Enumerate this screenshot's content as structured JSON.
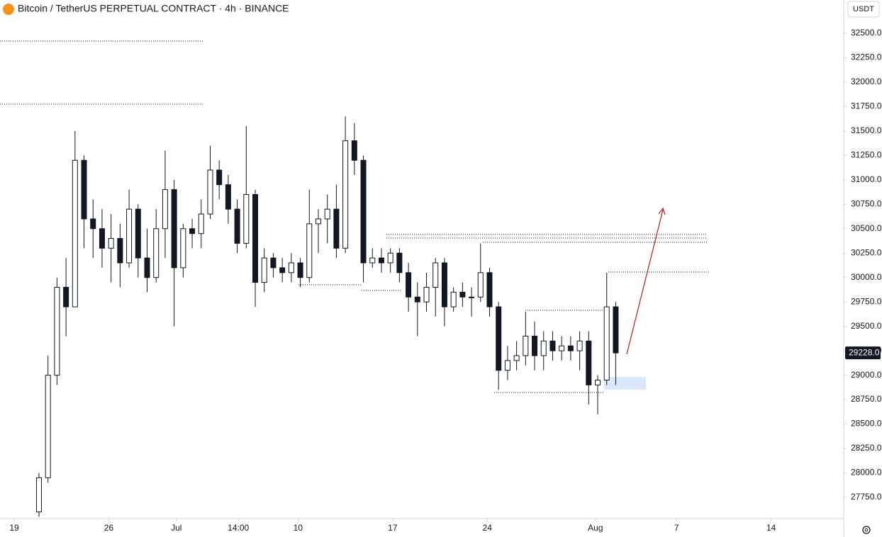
{
  "chart_data": {
    "type": "candlestick",
    "title": "Bitcoin / TetherUS PERPETUAL CONTRACT · 4h · BINANCE",
    "currency_button": "USDT",
    "ylim": [
      27532,
      32841
    ],
    "yticks": [
      {
        "value": 27750,
        "label": "27750.0"
      },
      {
        "value": 28000,
        "label": "28000.0"
      },
      {
        "value": 28250,
        "label": "28250.0"
      },
      {
        "value": 28500,
        "label": "28500.0"
      },
      {
        "value": 28750,
        "label": "28750.0"
      },
      {
        "value": 29000,
        "label": "29000.0"
      },
      {
        "value": 29250,
        "label": "29250.0"
      },
      {
        "value": 29500,
        "label": "29500.0"
      },
      {
        "value": 29750,
        "label": "29750.0"
      },
      {
        "value": 30000,
        "label": "30000.0"
      },
      {
        "value": 30250,
        "label": "30250.0"
      },
      {
        "value": 30500,
        "label": "30500.0"
      },
      {
        "value": 30750,
        "label": "30750.0"
      },
      {
        "value": 31000,
        "label": "31000.0"
      },
      {
        "value": 31250,
        "label": "31250.0"
      },
      {
        "value": 31500,
        "label": "31500.0"
      },
      {
        "value": 31750,
        "label": "31750.0"
      },
      {
        "value": 32000,
        "label": "32000.0"
      },
      {
        "value": 32250,
        "label": "32250.0"
      },
      {
        "value": 32500,
        "label": "32500.0"
      }
    ],
    "xlim": [
      -6.3,
      368.2
    ],
    "xticks": [
      {
        "value": 0,
        "label": "19"
      },
      {
        "value": 42,
        "label": "26"
      },
      {
        "value": 72,
        "label": "Jul"
      },
      {
        "value": 99.5,
        "label": "14:00"
      },
      {
        "value": 126,
        "label": "10"
      },
      {
        "value": 168,
        "label": "17"
      },
      {
        "value": 210,
        "label": "24"
      },
      {
        "value": 258,
        "label": "Aug"
      },
      {
        "value": 294,
        "label": "7"
      },
      {
        "value": 336,
        "label": "14"
      }
    ],
    "last_price": {
      "value": 29228,
      "label": "29228.0"
    },
    "up_color": "#ffffff",
    "down_color": "#131722",
    "border_color": "#131722",
    "series": {
      "x": [
        11,
        15,
        19,
        23,
        27,
        31,
        35,
        39,
        43,
        47,
        51,
        55,
        59,
        63,
        67,
        71,
        75,
        79,
        83,
        87,
        91,
        95,
        99,
        103,
        107,
        111,
        115,
        119,
        123,
        127,
        131,
        135,
        139,
        143,
        147,
        151,
        155,
        159,
        163,
        167,
        171,
        175,
        179,
        183,
        187,
        191,
        195,
        199,
        203,
        207,
        211,
        215,
        219,
        223,
        227,
        231,
        235,
        239,
        243,
        247,
        251,
        255,
        259,
        263,
        267
      ],
      "open": [
        27600,
        27950,
        29000,
        29900,
        29700,
        31200,
        30600,
        30500,
        30300,
        30400,
        30150,
        30700,
        30200,
        30000,
        30500,
        30900,
        30100,
        30500,
        30450,
        30650,
        31100,
        30950,
        30700,
        30350,
        30850,
        29950,
        30200,
        30100,
        30050,
        30150,
        30000,
        30550,
        30600,
        30700,
        30300,
        31400,
        31200,
        30150,
        30200,
        30150,
        30250,
        30050,
        29800,
        29750,
        29900,
        30150,
        29700,
        29850,
        29800,
        29800,
        30050,
        29700,
        29050,
        29150,
        29200,
        29400,
        29200,
        29350,
        29250,
        29300,
        29250,
        29350,
        28900,
        28950,
        29700
      ],
      "high": [
        28000,
        29200,
        30000,
        30200,
        31500,
        31250,
        30800,
        30700,
        30650,
        30550,
        30900,
        30750,
        30500,
        30700,
        31300,
        31000,
        30550,
        30600,
        30800,
        31350,
        31200,
        31050,
        30800,
        31550,
        30900,
        30300,
        30250,
        30200,
        30250,
        30200,
        30900,
        30700,
        30850,
        30950,
        31650,
        31580,
        31250,
        30300,
        30300,
        30300,
        30300,
        30150,
        29950,
        30050,
        30200,
        30200,
        29900,
        29950,
        29900,
        30350,
        30100,
        29750,
        29300,
        29350,
        29650,
        29550,
        29450,
        29450,
        29400,
        29400,
        29450,
        29450,
        29000,
        30050,
        29750
      ],
      "low": [
        27550,
        27900,
        28900,
        29400,
        29700,
        30300,
        30200,
        30100,
        29950,
        29900,
        30100,
        30000,
        29850,
        29950,
        30200,
        29500,
        30000,
        30300,
        30300,
        30600,
        30800,
        30550,
        30250,
        30300,
        29700,
        29850,
        30000,
        29950,
        29950,
        29900,
        29950,
        30250,
        30350,
        30200,
        30250,
        31050,
        29950,
        30100,
        30050,
        30050,
        29950,
        29650,
        29400,
        29650,
        29600,
        29500,
        29650,
        29700,
        29600,
        29750,
        29600,
        28850,
        28950,
        29050,
        29100,
        29050,
        29050,
        29150,
        29150,
        29150,
        29050,
        28700,
        28600,
        28900,
        28900
      ],
      "close": [
        27950,
        29000,
        29900,
        29700,
        31200,
        30600,
        30500,
        30300,
        30400,
        30150,
        30700,
        30200,
        30000,
        30500,
        30900,
        30100,
        30500,
        30450,
        30650,
        31100,
        30950,
        30700,
        30350,
        30850,
        29950,
        30200,
        30100,
        30050,
        30150,
        30000,
        30550,
        30600,
        30700,
        30300,
        31400,
        31200,
        30150,
        30200,
        30150,
        30250,
        30050,
        29800,
        29750,
        29900,
        30150,
        29700,
        29850,
        29800,
        29800,
        30050,
        29700,
        29050,
        29150,
        29200,
        29400,
        29200,
        29350,
        29250,
        29300,
        29250,
        29350,
        28900,
        28950,
        29700,
        29228
      ]
    }
  }
}
